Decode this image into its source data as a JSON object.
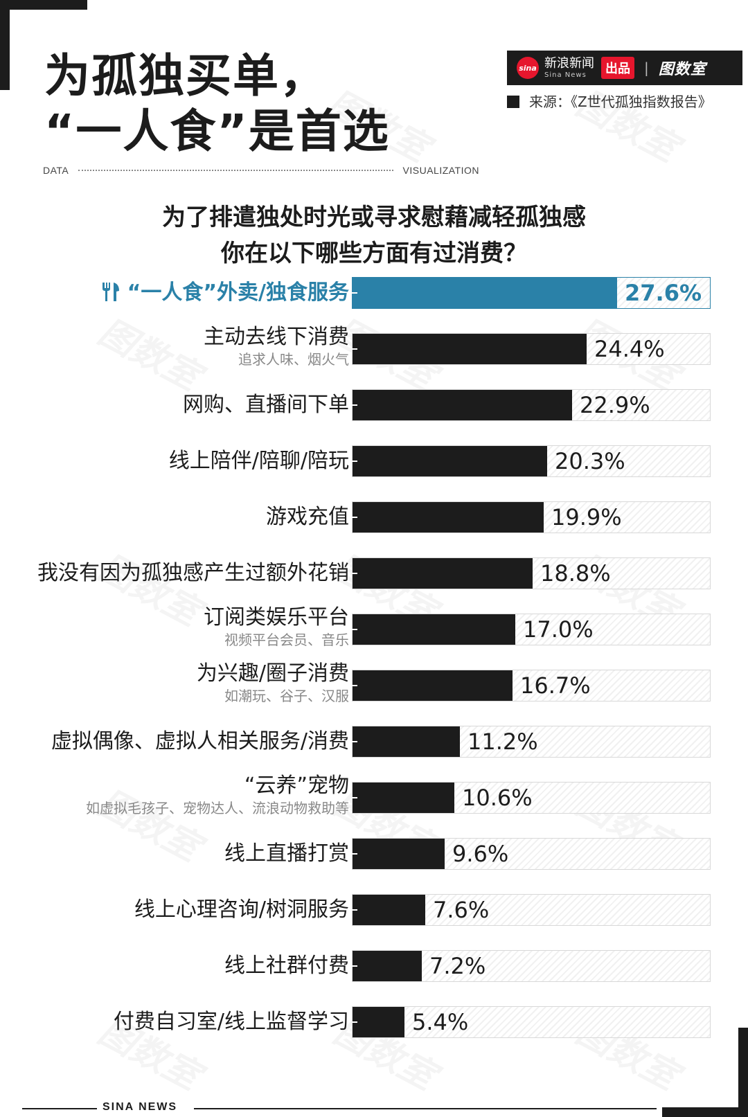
{
  "header": {
    "title_line1": "为孤独买单，",
    "title_line2": "“一人食”是首选",
    "data_label": "DATA",
    "viz_label": "VISUALIZATION"
  },
  "brand": {
    "sina_logo": "sina",
    "sina_cn": "新浪新闻",
    "sina_en": "Sina News",
    "produced": "出品",
    "separator": "|",
    "studio": "图数室"
  },
  "source": {
    "text": "来源：《Z世代孤独指数报告》"
  },
  "chart_data": {
    "type": "bar",
    "title": "为了排遣独处时光或寻求慰藉减轻孤独感 你在以下哪些方面有过消费？",
    "title_line1": "为了排遣独处时光或寻求慰藉减轻孤独感",
    "title_line2": "你在以下哪些方面有过消费？",
    "orientation": "horizontal",
    "xlim": [
      0,
      100
    ],
    "highlight_color": "#2a81a8",
    "bar_color": "#1c1c1c",
    "items": [
      {
        "label": "“一人食”外卖/独食服务",
        "sublabel": "",
        "value": 27.6,
        "value_label": "27.6%",
        "highlight": true,
        "icon": "fork-knife-icon"
      },
      {
        "label": "主动去线下消费",
        "sublabel": "追求人味、烟火气",
        "value": 24.4,
        "value_label": "24.4%"
      },
      {
        "label": "网购、直播间下单",
        "sublabel": "",
        "value": 22.9,
        "value_label": "22.9%"
      },
      {
        "label": "线上陪伴/陪聊/陪玩",
        "sublabel": "",
        "value": 20.3,
        "value_label": "20.3%"
      },
      {
        "label": "游戏充值",
        "sublabel": "",
        "value": 19.9,
        "value_label": "19.9%"
      },
      {
        "label": "我没有因为孤独感产生过额外花销",
        "sublabel": "",
        "value": 18.8,
        "value_label": "18.8%"
      },
      {
        "label": "订阅类娱乐平台",
        "sublabel": "视频平台会员、音乐",
        "value": 17.0,
        "value_label": "17.0%"
      },
      {
        "label": "为兴趣/圈子消费",
        "sublabel": "如潮玩、谷子、汉服",
        "value": 16.7,
        "value_label": "16.7%"
      },
      {
        "label": "虚拟偶像、虚拟人相关服务/消费",
        "sublabel": "",
        "value": 11.2,
        "value_label": "11.2%"
      },
      {
        "label": "“云养”宠物",
        "sublabel": "如虚拟毛孩子、宠物达人、流浪动物救助等",
        "value": 10.6,
        "value_label": "10.6%"
      },
      {
        "label": "线上直播打赏",
        "sublabel": "",
        "value": 9.6,
        "value_label": "9.6%"
      },
      {
        "label": "线上心理咨询/树洞服务",
        "sublabel": "",
        "value": 7.6,
        "value_label": "7.6%"
      },
      {
        "label": "线上社群付费",
        "sublabel": "",
        "value": 7.2,
        "value_label": "7.2%"
      },
      {
        "label": "付费自习室/线上监督学习",
        "sublabel": "",
        "value": 5.4,
        "value_label": "5.4%"
      }
    ]
  },
  "footer": {
    "text": "SINA NEWS"
  }
}
